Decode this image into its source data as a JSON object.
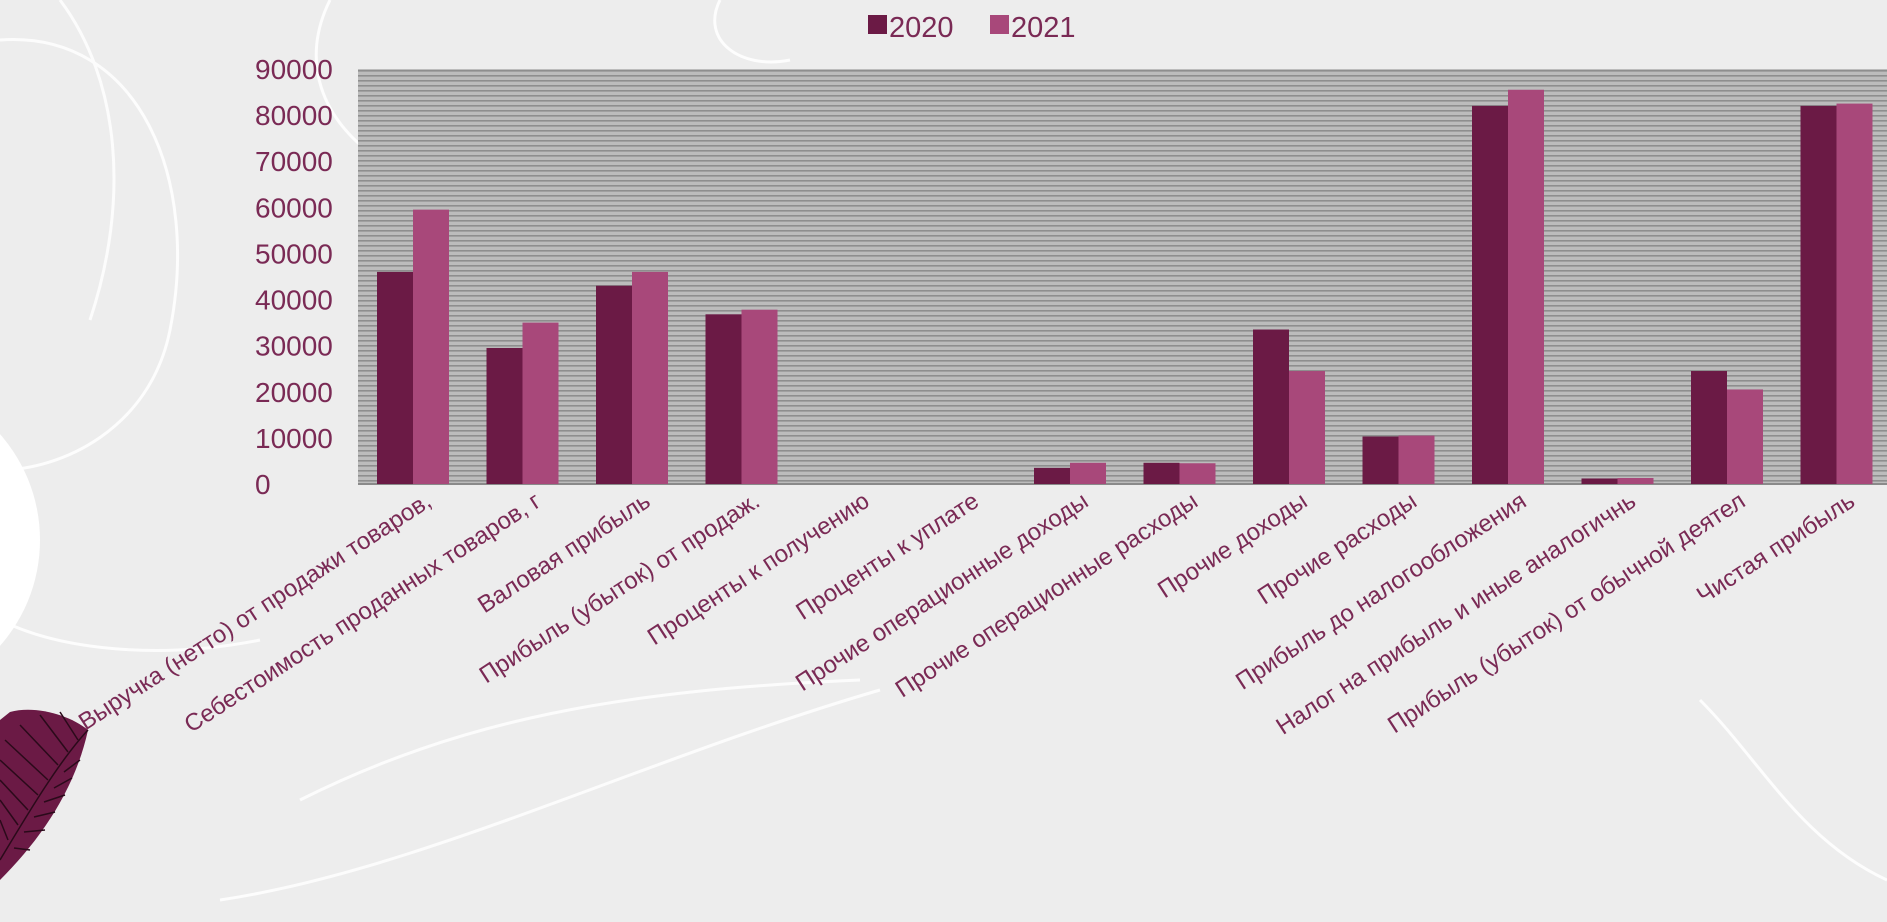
{
  "chart_data": {
    "type": "bar",
    "categories": [
      "Выручка (нетто) от продажи товаров,",
      "Себестоимость проданных товаров, г",
      "Валовая прибыль",
      "Прибыль (убыток) от продаж.",
      "Проценты к получению",
      "Проценты к уплате",
      "Прочие операционные доходы",
      "Прочие операционные расходы",
      "Прочие доходы",
      "Прочие расходы",
      "Прибыль до налогообложения",
      "Налог на прибыль и иные аналогичнь",
      "Прибыль (убыток) от обычной деятел",
      "Чистая прибыль"
    ],
    "series": [
      {
        "name": "2020",
        "color": "#6b1a45",
        "values": [
          46000,
          29500,
          43000,
          36800,
          0,
          0,
          3500,
          4600,
          33500,
          10300,
          82000,
          1200,
          24500,
          82000
        ]
      },
      {
        "name": "2021",
        "color": "#a8487a",
        "values": [
          59500,
          35000,
          46000,
          37800,
          0,
          0,
          4600,
          4500,
          24500,
          10500,
          85500,
          1300,
          20500,
          82500
        ]
      }
    ],
    "y_ticks": [
      "0",
      "10000",
      "20000",
      "30000",
      "40000",
      "50000",
      "60000",
      "70000",
      "80000",
      "90000"
    ],
    "ylim": [
      0,
      90000
    ],
    "legend_position": "top-center",
    "grid": true,
    "plot_background": "#b4b4b4",
    "label_color": "#7a2a55"
  }
}
